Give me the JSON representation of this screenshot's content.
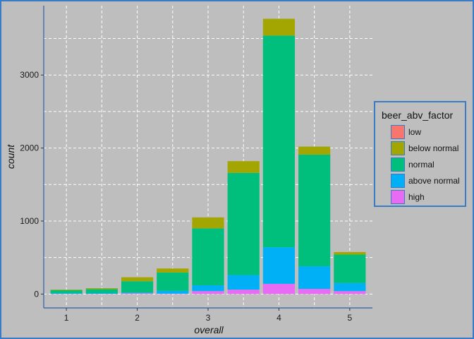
{
  "chart_data": {
    "type": "bar",
    "stacked": true,
    "xlabel": "overall",
    "ylabel": "count",
    "x": [
      1,
      1.5,
      2,
      2.5,
      3,
      3.5,
      4,
      4.5,
      5
    ],
    "xticks": [
      1,
      2,
      3,
      4,
      5
    ],
    "xlim": [
      0.68,
      5.32
    ],
    "yticks": [
      0,
      1000,
      2000,
      3000
    ],
    "ylim": [
      -190,
      3950
    ],
    "grid": true,
    "legend_position": "right",
    "legend_title": "beer_abv_factor",
    "series": [
      {
        "name": "low",
        "color": "#f8766d",
        "values": [
          0,
          0,
          0,
          0,
          0,
          0,
          0,
          0,
          0
        ]
      },
      {
        "name": "below normal",
        "color": "#a3a500",
        "values": [
          8,
          12,
          55,
          55,
          150,
          160,
          230,
          110,
          35
        ]
      },
      {
        "name": "normal",
        "color": "#00bf7d",
        "values": [
          40,
          55,
          155,
          250,
          780,
          1400,
          2900,
          1530,
          390
        ]
      },
      {
        "name": "above normal",
        "color": "#00b0f6",
        "values": [
          10,
          10,
          10,
          40,
          80,
          200,
          500,
          310,
          110
        ]
      },
      {
        "name": "high",
        "color": "#e76bf3",
        "values": [
          2,
          3,
          10,
          5,
          40,
          60,
          140,
          70,
          40
        ]
      }
    ]
  }
}
